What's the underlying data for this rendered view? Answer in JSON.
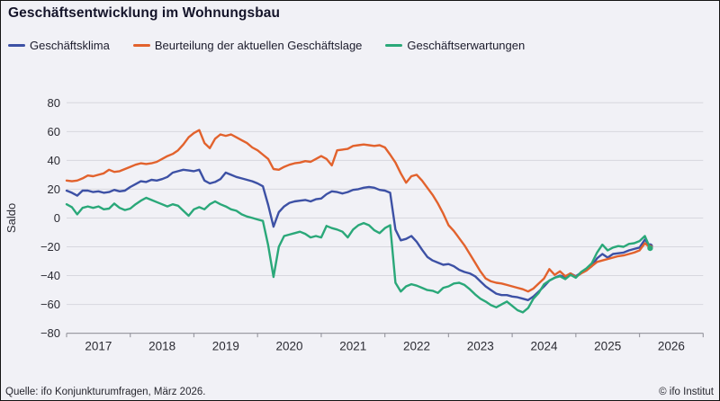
{
  "title": "Geschäftsentwicklung im Wohnungsbau",
  "footer": {
    "source": "Quelle: ifo Konjunkturumfragen, März 2026.",
    "copyright": "© ifo Institut"
  },
  "colors": {
    "background": "#f1f1f6",
    "gridline": "#d7d7de",
    "axis": "#9c9ca4",
    "tick_label": "#2b2b33",
    "title_text": "#15152a"
  },
  "chart_data": {
    "type": "line",
    "title": "Geschäftsentwicklung im Wohnungsbau",
    "ylabel": "Saldo",
    "xlabel": "",
    "ylim": [
      -80,
      80
    ],
    "ytick_step": 20,
    "grid": true,
    "legend_position": "top",
    "x_unit": "month",
    "x_start": "2017-01",
    "x_end": "2026-03",
    "points_per_series": 111,
    "xtick_years": [
      2017,
      2018,
      2019,
      2020,
      2021,
      2022,
      2023,
      2024,
      2025,
      2026
    ],
    "end_markers": true,
    "series": [
      {
        "name": "Geschäftsklima",
        "color": "#3d51a5",
        "values": [
          19,
          17.5,
          15.5,
          19,
          19,
          18,
          18.5,
          17.5,
          18,
          19.5,
          18.5,
          19,
          21.5,
          23.5,
          25.5,
          25,
          26.5,
          26,
          27,
          28.5,
          31.5,
          32.5,
          33.5,
          33,
          32.5,
          33.5,
          26,
          24,
          25,
          27,
          31.5,
          30,
          28.5,
          27.5,
          26.5,
          25.5,
          24,
          22,
          9,
          -6,
          4,
          8,
          10.5,
          11.5,
          12,
          12.5,
          11.5,
          13,
          13.5,
          16.5,
          18.5,
          18,
          17,
          18,
          19.5,
          20,
          21,
          21.5,
          21,
          19.5,
          19,
          17.5,
          -8,
          -15.5,
          -14.5,
          -12.5,
          -16.5,
          -22,
          -27,
          -29.5,
          -31,
          -32.5,
          -32,
          -33.5,
          -36,
          -37.5,
          -38.5,
          -40.5,
          -44,
          -47.5,
          -50,
          -52.5,
          -53.5,
          -53.5,
          -54.5,
          -55,
          -56,
          -57,
          -54.5,
          -51,
          -47.5,
          -43.5,
          -41.5,
          -40,
          -41,
          -38.5,
          -40.5,
          -38,
          -36,
          -33.5,
          -28,
          -25,
          -27.5,
          -25,
          -24.5,
          -24,
          -22.5,
          -21.5,
          -20.5,
          -15,
          -19.5
        ]
      },
      {
        "name": "Beurteilung der aktuellen Geschäftslage",
        "color": "#e2622d",
        "values": [
          26,
          25.5,
          26,
          27.5,
          29.5,
          29,
          30,
          31,
          33.5,
          32,
          32.5,
          34,
          35.5,
          37,
          38,
          37.5,
          38,
          39,
          41,
          43,
          44.5,
          47,
          51,
          56,
          59,
          61,
          52,
          48.5,
          55,
          58,
          57,
          58,
          56,
          54,
          52,
          49,
          47,
          44,
          41,
          34,
          33.5,
          35.5,
          37,
          38,
          38.5,
          39.5,
          39,
          41,
          43,
          41,
          36.5,
          47,
          47.5,
          48,
          50,
          50.5,
          51,
          50.5,
          50,
          50.5,
          49,
          44,
          38.5,
          31,
          24.5,
          29,
          30,
          26,
          21,
          16,
          10,
          3,
          -5,
          -9,
          -14,
          -19,
          -25,
          -31,
          -37,
          -42,
          -44,
          -45,
          -45.5,
          -46.5,
          -47.5,
          -48.5,
          -49.5,
          -51,
          -49,
          -45.5,
          -42,
          -35.5,
          -39.5,
          -37,
          -40.5,
          -38.5,
          -41,
          -38.5,
          -36.5,
          -33.5,
          -30.5,
          -29.5,
          -28.5,
          -27.5,
          -26.5,
          -26,
          -25,
          -24,
          -22.5,
          -17.5,
          -20.5
        ]
      },
      {
        "name": "Geschäftserwartungen",
        "color": "#2aa879",
        "values": [
          9.5,
          7.5,
          2.5,
          7,
          8,
          7,
          8,
          6,
          6.5,
          10,
          7,
          5.5,
          6.5,
          9.5,
          12,
          14,
          12.5,
          11,
          9.5,
          8,
          9.5,
          8.5,
          5,
          1.5,
          6,
          7.5,
          6,
          9.5,
          11.5,
          9.5,
          8,
          6,
          5,
          2.5,
          1,
          0,
          -1,
          -2,
          -19,
          -41,
          -20,
          -12.5,
          -11.5,
          -10.5,
          -9.5,
          -11,
          -13.5,
          -12.5,
          -13.5,
          -5.5,
          -7,
          -8,
          -9.5,
          -13.5,
          -8,
          -5,
          -3.5,
          -5,
          -8.5,
          -10.5,
          -7,
          -5,
          -45,
          -51,
          -47.5,
          -46,
          -47,
          -48.5,
          -50,
          -50.5,
          -52,
          -48.5,
          -47.5,
          -45.5,
          -45,
          -46.5,
          -49.5,
          -53,
          -56,
          -58,
          -60.5,
          -62,
          -60,
          -58,
          -61,
          -64,
          -65.5,
          -62.5,
          -56,
          -52,
          -46,
          -43.5,
          -41.5,
          -40.5,
          -42.5,
          -39.5,
          -41.5,
          -37.5,
          -35,
          -31.5,
          -24,
          -18.5,
          -22.5,
          -20.5,
          -19.5,
          -20,
          -18,
          -17.5,
          -16,
          -12.5,
          -21
        ]
      }
    ]
  }
}
